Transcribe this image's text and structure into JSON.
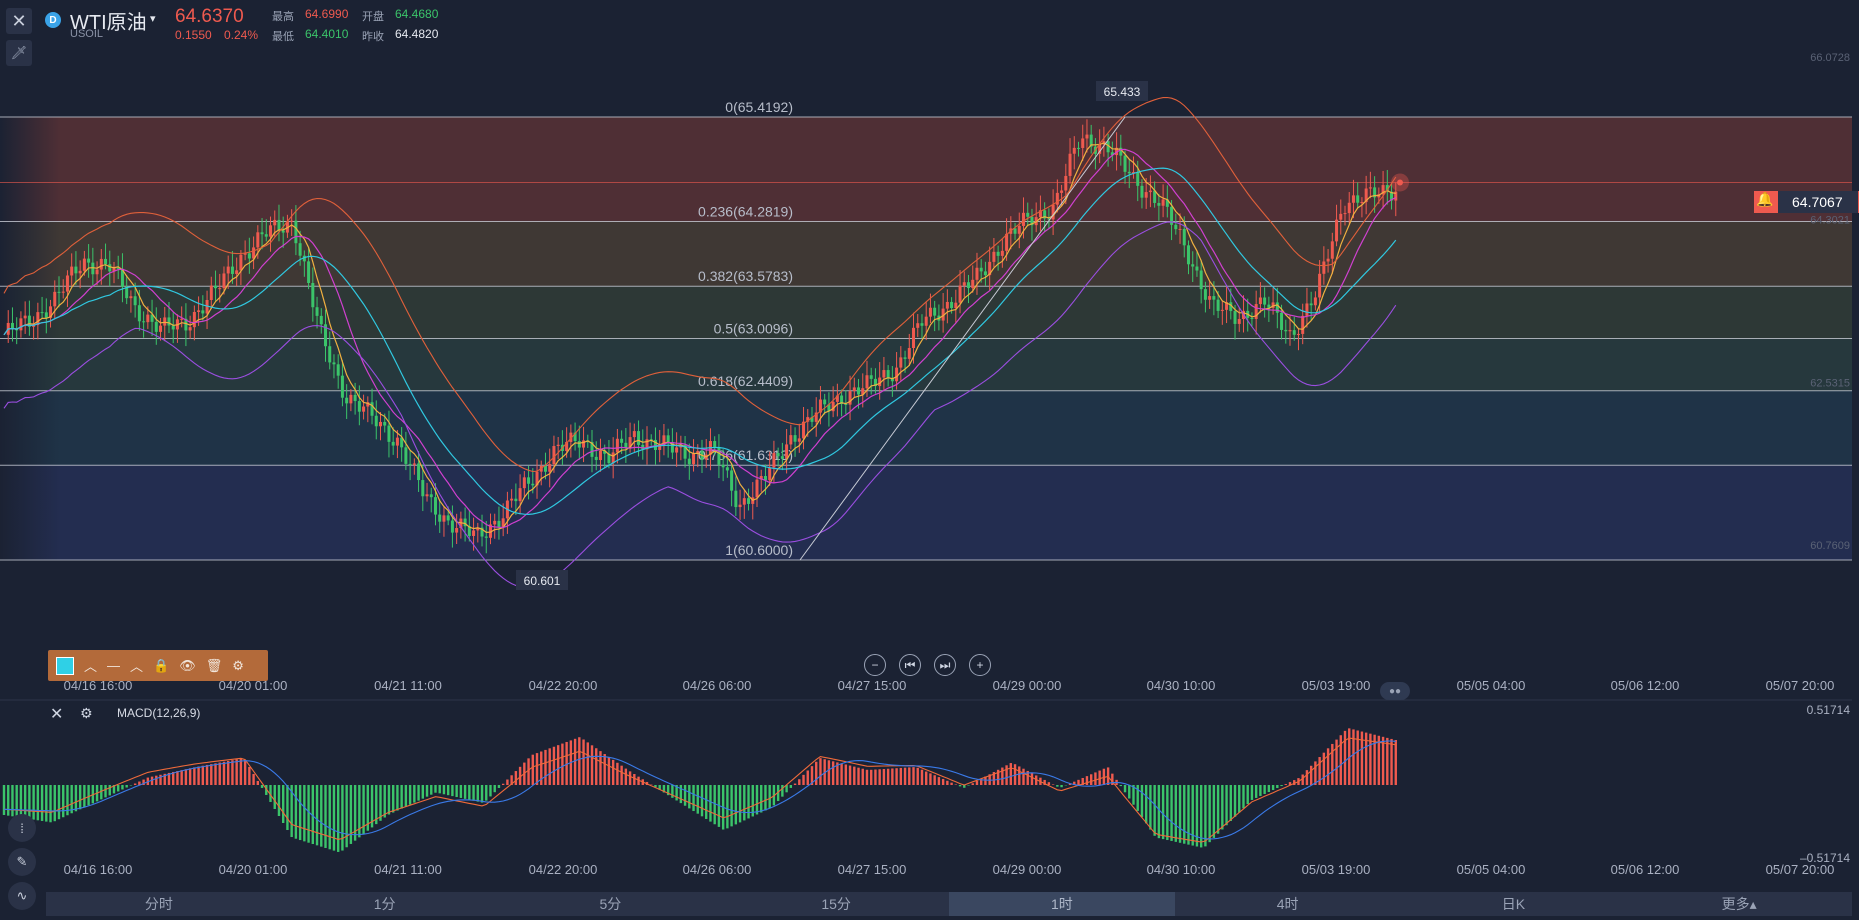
{
  "header": {
    "close_icon": "✕",
    "pin_icon": "🗡",
    "symbol_icon": "D",
    "symbol_name": "WTI原油",
    "symbol_caret": "▾",
    "symbol_code": "USOIL",
    "last_price": "64.6370",
    "change": "0.1550",
    "change_pct": "0.24%",
    "quote": {
      "high_label": "最高",
      "high": "64.6990",
      "open_label": "开盘",
      "open": "64.4680",
      "low_label": "最低",
      "low": "64.4010",
      "prev_label": "昨收",
      "prev_close": "64.4820"
    }
  },
  "chart_data": {
    "type": "candlestick",
    "title": "WTI原油",
    "y_axis_labels": [
      "66.0728",
      "64.3021",
      "62.5315",
      "60.7609"
    ],
    "y_range": [
      59.0,
      67.2
    ],
    "x_axis_labels": [
      "04/16 16:00",
      "04/20 01:00",
      "04/21 11:00",
      "04/22 20:00",
      "04/26 06:00",
      "04/27 15:00",
      "04/29 00:00",
      "04/30 10:00",
      "05/03 19:00",
      "05/05 04:00",
      "05/06 12:00",
      "05/07 20:00"
    ],
    "current_price": "64.7067",
    "current_price_value": 64.7067,
    "annotation_high": "65.433",
    "annotation_low": "60.601",
    "fibonacci": [
      {
        "label": "0(65.4192)",
        "value": 65.4192,
        "color": "#7a3a37"
      },
      {
        "label": "0.236(64.2819)",
        "value": 64.2819,
        "color": "#5d4a34"
      },
      {
        "label": "0.382(63.5783)",
        "value": 63.5783,
        "color": "#3c4a38"
      },
      {
        "label": "0.5(63.0096)",
        "value": 63.0096,
        "color": "#2f4a45"
      },
      {
        "label": "0.618(62.4409)",
        "value": 62.4409,
        "color": "#234257"
      },
      {
        "label": "0.786(61.6313)",
        "value": 61.6313,
        "color": "#2a3668"
      },
      {
        "label": "1(60.6000)",
        "value": 60.6,
        "color": "#392f63"
      }
    ],
    "price_path": [
      63.05,
      63.2,
      63.45,
      63.85,
      63.8,
      63.35,
      63.1,
      63.2,
      63.5,
      63.9,
      64.15,
      64.3,
      63.1,
      62.4,
      62.15,
      61.9,
      61.3,
      61.0,
      60.85,
      61.1,
      61.45,
      61.8,
      61.9,
      61.7,
      61.95,
      61.85,
      61.75,
      61.8,
      61.2,
      61.5,
      61.95,
      62.2,
      62.4,
      62.5,
      62.7,
      63.2,
      63.4,
      63.65,
      64.05,
      64.3,
      64.45,
      65.2,
      65.1,
      64.75,
      64.5,
      64.0,
      63.35,
      63.25,
      63.4,
      63.05,
      63.5,
      64.5,
      64.55,
      64.65
    ]
  },
  "macd": {
    "label": "MACD(12,26,9)",
    "axis_top": "0.51714",
    "axis_bottom": "–0.51714",
    "histogram": [
      -0.2,
      -0.25,
      -0.1,
      0.05,
      0.12,
      0.18,
      -0.35,
      -0.45,
      -0.2,
      -0.05,
      -0.12,
      0.2,
      0.32,
      0.1,
      -0.1,
      -0.3,
      -0.15,
      0.18,
      0.1,
      0.12,
      -0.02,
      0.15,
      -0.02,
      0.12,
      -0.35,
      -0.42,
      -0.1,
      0.05,
      0.38,
      0.3
    ]
  },
  "toolbar": {
    "lock_icon": "🔒",
    "eye_icon": "👁",
    "trash_icon": "🗑",
    "settings_icon": "⚙"
  },
  "controls": {
    "zoom_out": "−",
    "prev": "⏮",
    "next": "⏭",
    "zoom_in": "+"
  },
  "tabs": [
    "分时",
    "1分",
    "5分",
    "15分",
    "1时",
    "4时",
    "日K",
    "更多▴"
  ],
  "active_tab": "1时"
}
